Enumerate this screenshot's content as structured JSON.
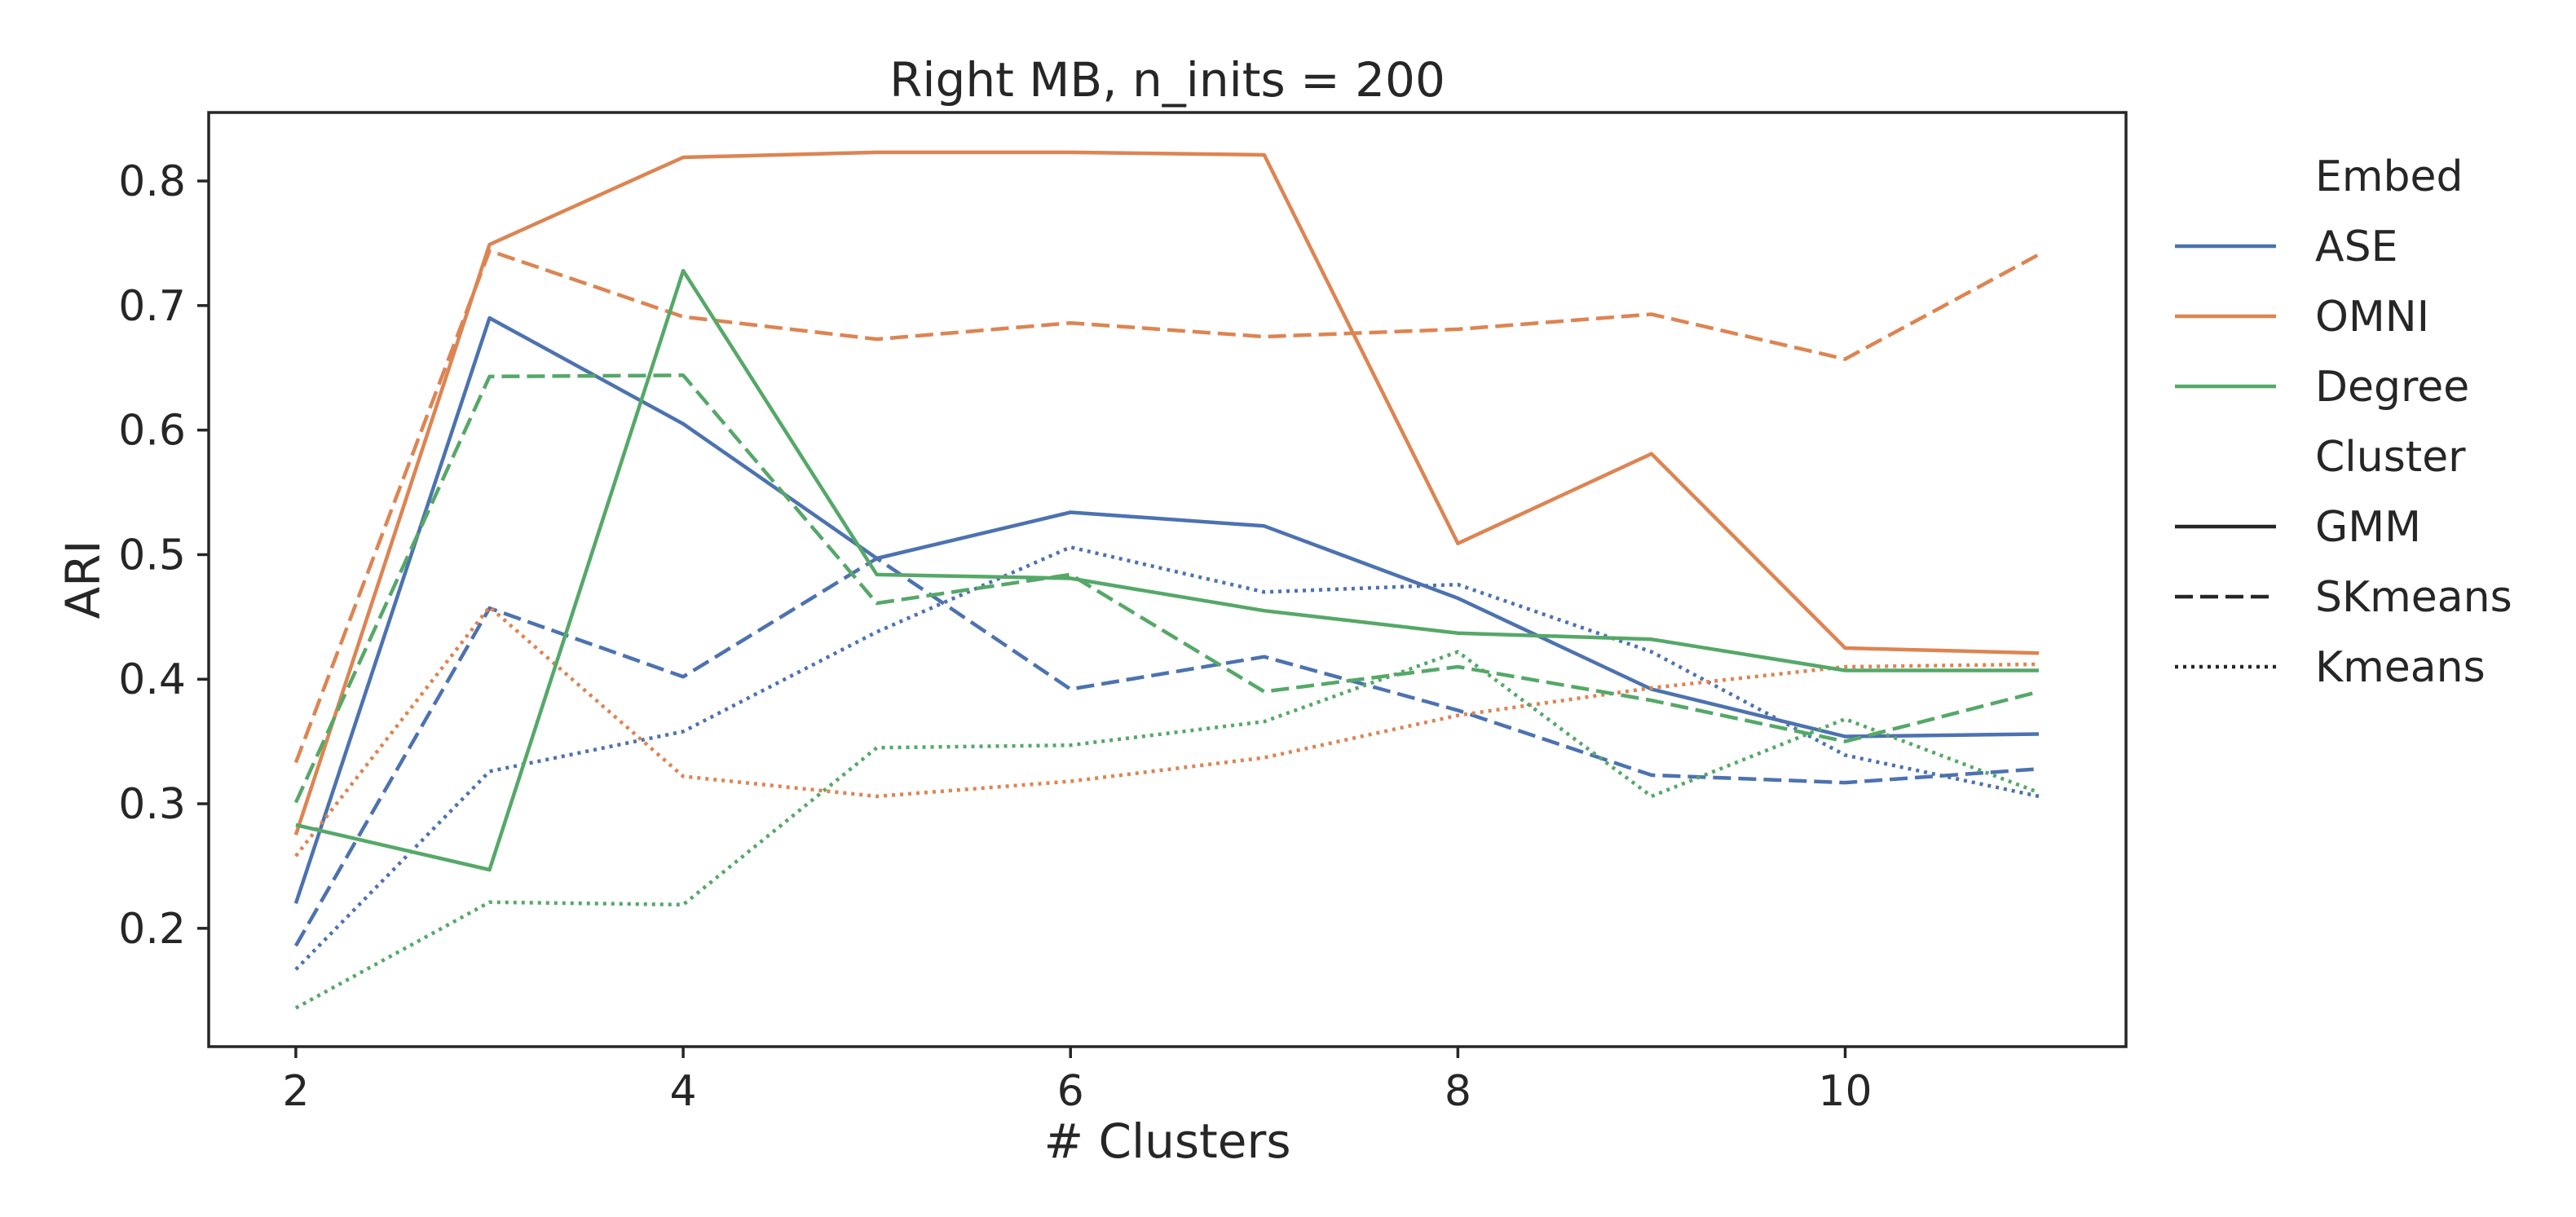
{
  "chart_data": {
    "type": "line",
    "title": "Right MB, n_inits = 200",
    "xlabel": "# Clusters",
    "ylabel": "ARI",
    "x": [
      2,
      3,
      4,
      5,
      6,
      7,
      8,
      9,
      10,
      11
    ],
    "xlim": [
      1.55,
      11.45
    ],
    "ylim": [
      0.105,
      0.855
    ],
    "xticks": [
      2,
      4,
      6,
      8,
      10
    ],
    "yticks": [
      0.2,
      0.3,
      0.4,
      0.5,
      0.6,
      0.7,
      0.8
    ],
    "xtick_labels": [
      "2",
      "4",
      "6",
      "8",
      "10"
    ],
    "ytick_labels": [
      "0.2",
      "0.3",
      "0.4",
      "0.5",
      "0.6",
      "0.7",
      "0.8"
    ],
    "grid": false,
    "legend_position": "outside-right",
    "legend": {
      "hue_title": "Embed",
      "hue_entries": [
        {
          "label": "ASE",
          "color": "#4c72b0"
        },
        {
          "label": "OMNI",
          "color": "#dd8452"
        },
        {
          "label": "Degree",
          "color": "#55a868"
        }
      ],
      "style_title": "Cluster",
      "style_entries": [
        {
          "label": "GMM",
          "dash": "solid"
        },
        {
          "label": "SKmeans",
          "dash": "dashed"
        },
        {
          "label": "Kmeans",
          "dash": "dotted"
        }
      ]
    },
    "series": [
      {
        "embed": "ASE",
        "cluster": "GMM",
        "color": "#4c72b0",
        "dash": "solid",
        "values": [
          0.22,
          0.69,
          0.605,
          0.497,
          0.534,
          0.523,
          0.465,
          0.392,
          0.354,
          0.356
        ]
      },
      {
        "embed": "ASE",
        "cluster": "SKmeans",
        "color": "#4c72b0",
        "dash": "dashed",
        "values": [
          0.186,
          0.457,
          0.402,
          0.497,
          0.392,
          0.418,
          0.375,
          0.323,
          0.317,
          0.328
        ]
      },
      {
        "embed": "ASE",
        "cluster": "Kmeans",
        "color": "#4c72b0",
        "dash": "dotted",
        "values": [
          0.167,
          0.326,
          0.358,
          0.438,
          0.506,
          0.47,
          0.476,
          0.422,
          0.339,
          0.306
        ]
      },
      {
        "embed": "OMNI",
        "cluster": "GMM",
        "color": "#dd8452",
        "dash": "solid",
        "values": [
          0.275,
          0.749,
          0.819,
          0.823,
          0.823,
          0.821,
          0.509,
          0.581,
          0.425,
          0.421
        ]
      },
      {
        "embed": "OMNI",
        "cluster": "SKmeans",
        "color": "#dd8452",
        "dash": "dashed",
        "values": [
          0.333,
          0.744,
          0.691,
          0.673,
          0.686,
          0.675,
          0.681,
          0.693,
          0.657,
          0.741
        ]
      },
      {
        "embed": "OMNI",
        "cluster": "Kmeans",
        "color": "#dd8452",
        "dash": "dotted",
        "values": [
          0.258,
          0.458,
          0.322,
          0.306,
          0.318,
          0.337,
          0.371,
          0.393,
          0.41,
          0.412
        ]
      },
      {
        "embed": "Degree",
        "cluster": "GMM",
        "color": "#55a868",
        "dash": "solid",
        "values": [
          0.283,
          0.247,
          0.728,
          0.484,
          0.481,
          0.455,
          0.437,
          0.432,
          0.407,
          0.407
        ]
      },
      {
        "embed": "Degree",
        "cluster": "SKmeans",
        "color": "#55a868",
        "dash": "dashed",
        "values": [
          0.301,
          0.643,
          0.644,
          0.461,
          0.484,
          0.39,
          0.41,
          0.383,
          0.35,
          0.39
        ]
      },
      {
        "embed": "Degree",
        "cluster": "Kmeans",
        "color": "#55a868",
        "dash": "dotted",
        "values": [
          0.136,
          0.221,
          0.219,
          0.345,
          0.347,
          0.366,
          0.422,
          0.306,
          0.368,
          0.309
        ]
      }
    ]
  }
}
